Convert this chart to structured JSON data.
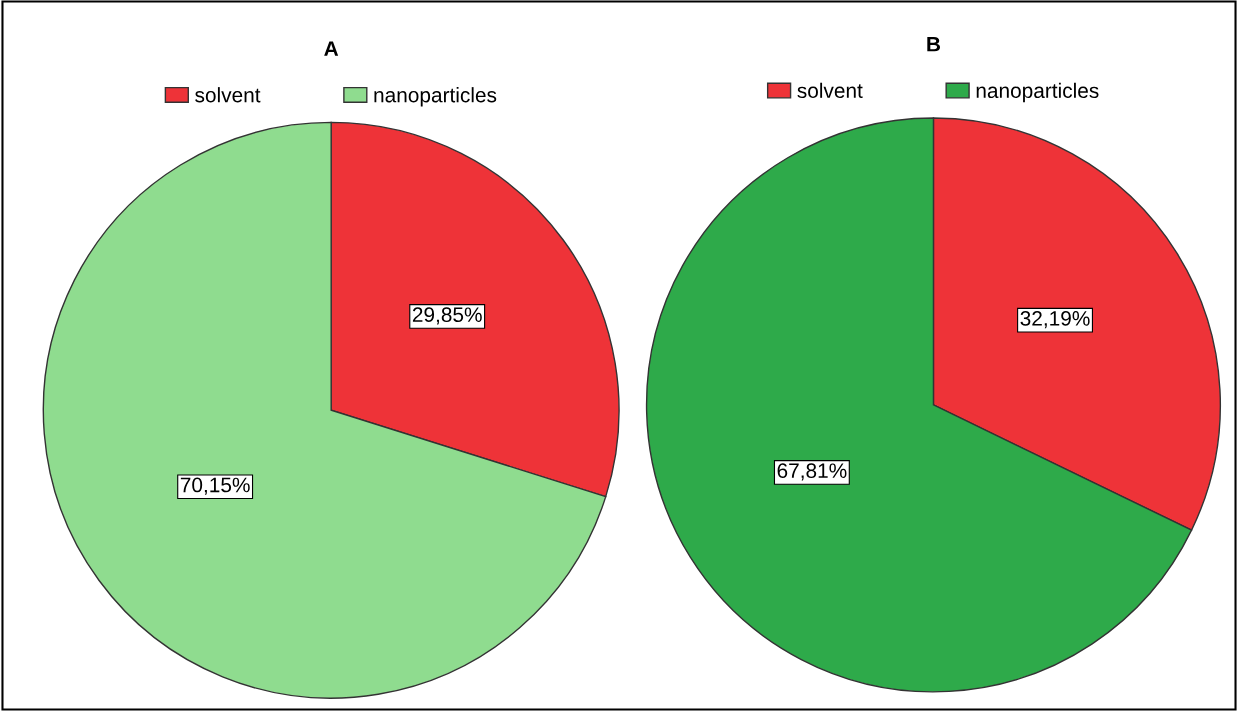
{
  "chart_data": [
    {
      "type": "pie",
      "title": "A",
      "categories": [
        "solvent",
        "nanoparticles"
      ],
      "values": [
        29.85,
        70.15
      ],
      "colors": [
        "#ee3338",
        "#8fdc8f"
      ],
      "value_labels": [
        "29,85%",
        "70,15%"
      ],
      "legend": "top"
    },
    {
      "type": "pie",
      "title": "B",
      "categories": [
        "solvent",
        "nanoparticles"
      ],
      "values": [
        32.19,
        67.81
      ],
      "colors": [
        "#ee3338",
        "#2eaa4a"
      ],
      "value_labels": [
        "32,19%",
        "67,81%"
      ],
      "legend": "top"
    }
  ]
}
